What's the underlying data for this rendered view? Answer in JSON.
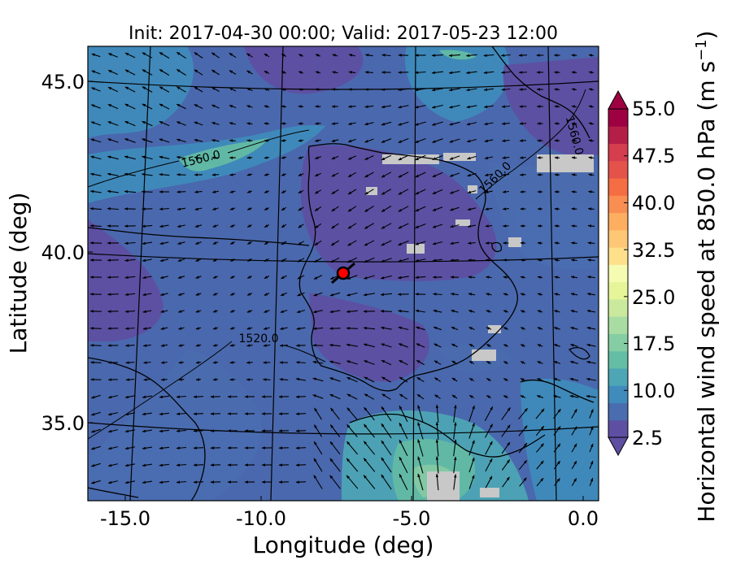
{
  "title": "Init: 2017-04-30 00:00; Valid: 2017-05-23 12:00",
  "map": {
    "xlabel": "Longitude (deg)",
    "ylabel": "Latitude (deg)",
    "xticks": [
      "-15.0",
      "-10.0",
      "-5.0",
      "0.0"
    ],
    "yticks": [
      "45.0",
      "40.0",
      "35.0"
    ],
    "contour_labels": [
      "1560.0",
      "1560.0",
      "1560.0",
      "1520.0"
    ],
    "marker_color": "#ff0000"
  },
  "colorbar": {
    "label": "Horizontal wind speed at 850.0 hPa (m s",
    "label_sup": "−1",
    "label_end": ")",
    "ticks": [
      "2.5",
      "10.0",
      "17.5",
      "25.0",
      "32.5",
      "40.0",
      "47.5",
      "55.0"
    ],
    "colors": [
      "#5e4fa2",
      "#4a6db0",
      "#3f8bbb",
      "#4da6b5",
      "#63bea5",
      "#85cea4",
      "#a8dca3",
      "#cbe99d",
      "#e6f598",
      "#f5fbb1",
      "#fee08b",
      "#fdc776",
      "#fdae61",
      "#f88e52",
      "#f46d43",
      "#e4534a",
      "#d53e4f",
      "#b41f48",
      "#9e0142"
    ]
  }
}
